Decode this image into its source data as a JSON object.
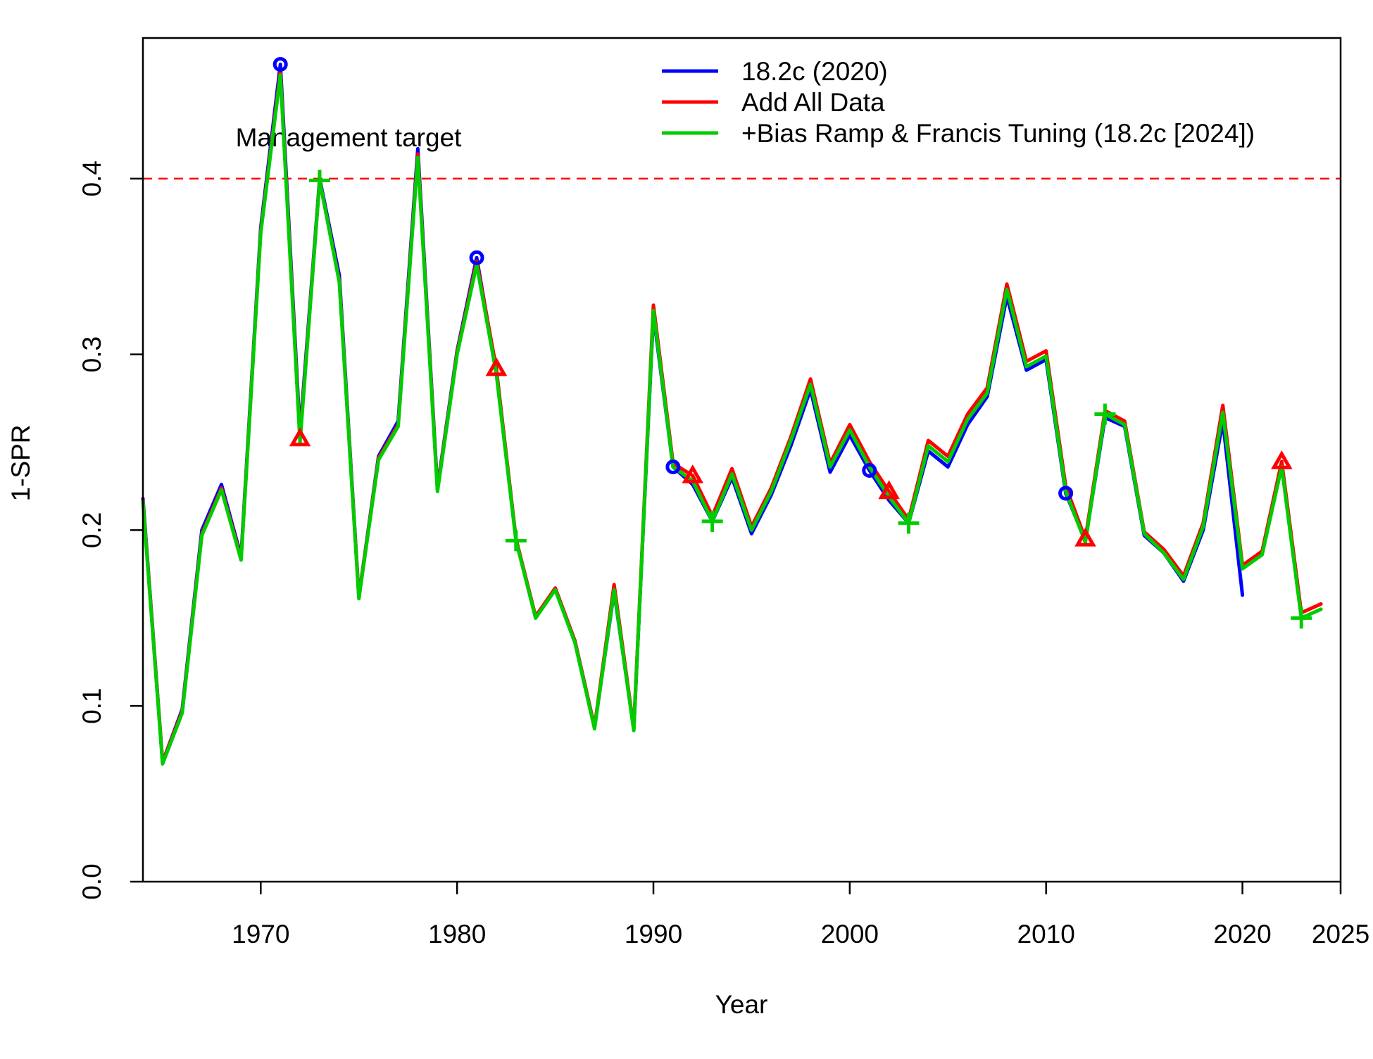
{
  "chart_data": {
    "type": "line",
    "title": "",
    "xlabel": "Year",
    "ylabel": "1-SPR",
    "xlim": [
      1964,
      2025
    ],
    "ylim": [
      0,
      0.48
    ],
    "x_ticks": [
      1970,
      1980,
      1990,
      2000,
      2010,
      2020,
      2025
    ],
    "x_tick_labels": [
      "1970",
      "1980",
      "1990",
      "2000",
      "2010",
      "2020",
      "2025"
    ],
    "y_ticks": [
      0.0,
      0.1,
      0.2,
      0.3,
      0.4
    ],
    "y_tick_labels": [
      "0.0",
      "0.1",
      "0.2",
      "0.3",
      "0.4"
    ],
    "grid": false,
    "legend_position": "top-right",
    "reference_line": {
      "y": 0.4,
      "label": "Management target",
      "color": "#ff0000",
      "style": "dashed"
    },
    "series": [
      {
        "name": "18.2c (2020)",
        "color": "#0000ff",
        "marker": "circle",
        "marker_years": [
          1971,
          1981,
          1991,
          2001,
          2011
        ],
        "x": [
          1964,
          1965,
          1966,
          1967,
          1968,
          1969,
          1970,
          1971,
          1972,
          1973,
          1974,
          1975,
          1976,
          1977,
          1978,
          1979,
          1980,
          1981,
          1982,
          1983,
          1984,
          1985,
          1986,
          1987,
          1988,
          1989,
          1990,
          1991,
          1992,
          1993,
          1994,
          1995,
          1996,
          1997,
          1998,
          1999,
          2000,
          2001,
          2002,
          2003,
          2004,
          2005,
          2006,
          2007,
          2008,
          2009,
          2010,
          2011,
          2012,
          2013,
          2014,
          2015,
          2016,
          2017,
          2018,
          2019,
          2020
        ],
        "values": [
          0.218,
          0.068,
          0.098,
          0.2,
          0.226,
          0.185,
          0.372,
          0.465,
          0.255,
          0.4,
          0.345,
          0.162,
          0.242,
          0.262,
          0.417,
          0.224,
          0.302,
          0.355,
          0.29,
          0.195,
          0.15,
          0.167,
          0.137,
          0.088,
          0.165,
          0.087,
          0.323,
          0.236,
          0.226,
          0.205,
          0.23,
          0.198,
          0.22,
          0.248,
          0.28,
          0.233,
          0.254,
          0.234,
          0.217,
          0.204,
          0.245,
          0.236,
          0.26,
          0.276,
          0.333,
          0.291,
          0.297,
          0.221,
          0.194,
          0.264,
          0.259,
          0.197,
          0.187,
          0.171,
          0.2,
          0.262,
          0.163
        ]
      },
      {
        "name": "Add All Data",
        "color": "#ff0000",
        "marker": "triangle",
        "marker_years": [
          1972,
          1982,
          1992,
          2002,
          2012,
          2022
        ],
        "x": [
          1964,
          1965,
          1966,
          1967,
          1968,
          1969,
          1970,
          1971,
          1972,
          1973,
          1974,
          1975,
          1976,
          1977,
          1978,
          1979,
          1980,
          1981,
          1982,
          1983,
          1984,
          1985,
          1986,
          1987,
          1988,
          1989,
          1990,
          1991,
          1992,
          1993,
          1994,
          1995,
          1996,
          1997,
          1998,
          1999,
          2000,
          2001,
          2002,
          2003,
          2004,
          2005,
          2006,
          2007,
          2008,
          2009,
          2010,
          2011,
          2012,
          2013,
          2014,
          2015,
          2016,
          2017,
          2018,
          2019,
          2020,
          2021,
          2022,
          2023,
          2024
        ],
        "values": [
          0.217,
          0.068,
          0.097,
          0.198,
          0.224,
          0.184,
          0.37,
          0.461,
          0.252,
          0.399,
          0.342,
          0.162,
          0.241,
          0.26,
          0.414,
          0.223,
          0.301,
          0.353,
          0.292,
          0.195,
          0.151,
          0.167,
          0.137,
          0.088,
          0.169,
          0.087,
          0.328,
          0.238,
          0.231,
          0.208,
          0.235,
          0.202,
          0.224,
          0.253,
          0.286,
          0.238,
          0.26,
          0.239,
          0.222,
          0.206,
          0.251,
          0.242,
          0.266,
          0.281,
          0.34,
          0.296,
          0.302,
          0.225,
          0.195,
          0.268,
          0.262,
          0.199,
          0.189,
          0.174,
          0.204,
          0.271,
          0.18,
          0.188,
          0.239,
          0.153,
          0.158
        ]
      },
      {
        "name": "+Bias Ramp & Francis Tuning (18.2c [2024])",
        "color": "#00cc00",
        "marker": "plus",
        "marker_years": [
          1973,
          1983,
          1993,
          2003,
          2013,
          2023
        ],
        "x": [
          1964,
          1965,
          1966,
          1967,
          1968,
          1969,
          1970,
          1971,
          1972,
          1973,
          1974,
          1975,
          1976,
          1977,
          1978,
          1979,
          1980,
          1981,
          1982,
          1983,
          1984,
          1985,
          1986,
          1987,
          1988,
          1989,
          1990,
          1991,
          1992,
          1993,
          1994,
          1995,
          1996,
          1997,
          1998,
          1999,
          2000,
          2001,
          2002,
          2003,
          2004,
          2005,
          2006,
          2007,
          2008,
          2009,
          2010,
          2011,
          2012,
          2013,
          2014,
          2015,
          2016,
          2017,
          2018,
          2019,
          2020,
          2021,
          2022,
          2023,
          2024
        ],
        "values": [
          0.216,
          0.067,
          0.096,
          0.197,
          0.223,
          0.183,
          0.369,
          0.459,
          0.25,
          0.399,
          0.341,
          0.161,
          0.24,
          0.259,
          0.412,
          0.222,
          0.3,
          0.351,
          0.289,
          0.194,
          0.15,
          0.166,
          0.136,
          0.087,
          0.166,
          0.086,
          0.325,
          0.236,
          0.228,
          0.205,
          0.232,
          0.2,
          0.222,
          0.251,
          0.283,
          0.236,
          0.257,
          0.236,
          0.219,
          0.204,
          0.248,
          0.239,
          0.263,
          0.278,
          0.337,
          0.293,
          0.299,
          0.222,
          0.193,
          0.266,
          0.26,
          0.198,
          0.187,
          0.172,
          0.202,
          0.267,
          0.178,
          0.186,
          0.236,
          0.15,
          0.155
        ]
      }
    ]
  }
}
